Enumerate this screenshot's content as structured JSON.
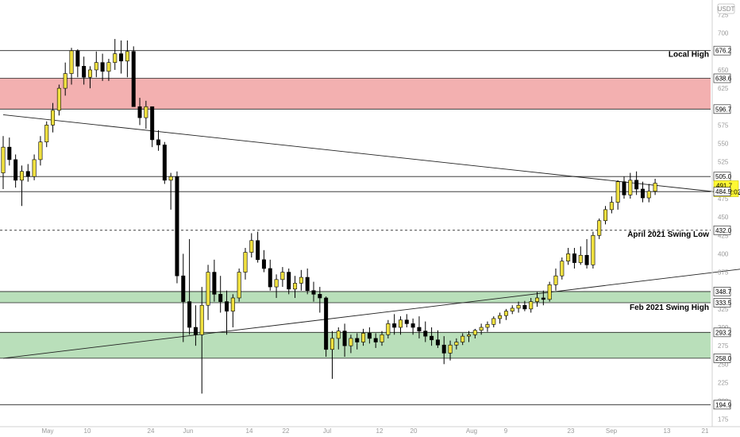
{
  "chart_data": {
    "type": "candlestick",
    "currency": "USDT",
    "x_axis_labels": [
      "May",
      "10",
      "24",
      "Jun",
      "14",
      "22",
      "Jul",
      "12",
      "20",
      "Aug",
      "9",
      "23",
      "Sep",
      "13",
      "21"
    ],
    "y_axis_ticks": [
      175,
      200,
      225,
      250,
      275,
      300,
      325,
      350,
      375,
      400,
      425,
      450,
      475,
      500,
      525,
      550,
      575,
      600,
      625,
      650,
      675,
      700,
      725
    ],
    "ylim": [
      165,
      745
    ],
    "price_labels": [
      {
        "text": "676.2",
        "value": 676.2,
        "style": "plain"
      },
      {
        "text": "638.6",
        "value": 638.6,
        "style": "plain"
      },
      {
        "text": "596.7",
        "value": 596.7,
        "style": "plain"
      },
      {
        "text": "505.0",
        "value": 505.0,
        "style": "plain"
      },
      {
        "text": "491.7",
        "value": 491.7,
        "style": "current",
        "countdown": "09:02:02"
      },
      {
        "text": "484.5",
        "value": 484.5,
        "style": "plain"
      },
      {
        "text": "432.0",
        "value": 432.0,
        "style": "plain"
      },
      {
        "text": "348.7",
        "value": 348.7,
        "style": "plain"
      },
      {
        "text": "333.5",
        "value": 333.5,
        "style": "plain"
      },
      {
        "text": "293.2",
        "value": 293.2,
        "style": "plain"
      },
      {
        "text": "258.0",
        "value": 258.0,
        "style": "plain"
      },
      {
        "text": "194.9",
        "value": 194.9,
        "style": "plain"
      }
    ],
    "horizontal_lines": [
      {
        "value": 676.2,
        "style": "solid"
      },
      {
        "value": 505.0,
        "style": "solid"
      },
      {
        "value": 484.5,
        "style": "solid"
      },
      {
        "value": 432.0,
        "style": "dashed"
      },
      {
        "value": 194.9,
        "style": "solid"
      }
    ],
    "zones": [
      {
        "from": 596.7,
        "to": 638.6,
        "type": "resistance",
        "color": "#ef9a9a"
      },
      {
        "from": 333.5,
        "to": 348.7,
        "type": "support",
        "color": "#a5d6a7"
      },
      {
        "from": 258.0,
        "to": 293.2,
        "type": "support",
        "color": "#a5d6a7"
      }
    ],
    "trendlines": [
      {
        "from": {
          "candle": 0,
          "value": 589
        },
        "to": {
          "candle": 150,
          "value": 452
        }
      },
      {
        "from": {
          "candle": 0,
          "value": 258
        },
        "to": {
          "candle": 150,
          "value": 411
        }
      }
    ],
    "annotations": [
      {
        "text": "Local High",
        "value": 668
      },
      {
        "text": "April 2021 Swing Low",
        "value": 423
      },
      {
        "text": "Feb 2021 Swing High",
        "value": 324
      }
    ],
    "colors": {
      "up": "#f0e040",
      "down": "#000000",
      "resistance": "#ef9a9a",
      "support": "#a5d6a7",
      "current_badge": "#fff833"
    },
    "candles": [
      [
        510,
        560,
        488,
        545
      ],
      [
        545,
        558,
        520,
        528
      ],
      [
        528,
        535,
        490,
        500
      ],
      [
        500,
        520,
        465,
        512
      ],
      [
        512,
        522,
        498,
        505
      ],
      [
        505,
        535,
        500,
        528
      ],
      [
        528,
        560,
        520,
        552
      ],
      [
        552,
        580,
        545,
        575
      ],
      [
        575,
        605,
        565,
        595
      ],
      [
        595,
        630,
        588,
        625
      ],
      [
        625,
        660,
        615,
        645
      ],
      [
        645,
        680,
        630,
        676
      ],
      [
        676,
        678,
        640,
        655
      ],
      [
        655,
        668,
        630,
        640
      ],
      [
        640,
        655,
        625,
        650
      ],
      [
        650,
        675,
        640,
        660
      ],
      [
        660,
        672,
        635,
        648
      ],
      [
        648,
        665,
        635,
        660
      ],
      [
        660,
        692,
        650,
        672
      ],
      [
        672,
        690,
        645,
        662
      ],
      [
        662,
        690,
        640,
        675
      ],
      [
        675,
        682,
        600,
        600
      ],
      [
        600,
        612,
        575,
        585
      ],
      [
        585,
        608,
        570,
        600
      ],
      [
        600,
        600,
        545,
        555
      ],
      [
        555,
        568,
        540,
        548
      ],
      [
        548,
        552,
        495,
        500
      ],
      [
        500,
        510,
        460,
        505
      ],
      [
        505,
        512,
        360,
        370
      ],
      [
        370,
        400,
        280,
        335
      ],
      [
        335,
        420,
        290,
        300
      ],
      [
        300,
        330,
        275,
        290
      ],
      [
        290,
        355,
        210,
        330
      ],
      [
        330,
        385,
        310,
        375
      ],
      [
        375,
        392,
        335,
        345
      ],
      [
        345,
        370,
        320,
        335
      ],
      [
        335,
        350,
        290,
        322
      ],
      [
        322,
        345,
        300,
        340
      ],
      [
        340,
        380,
        335,
        375
      ],
      [
        375,
        408,
        365,
        402
      ],
      [
        402,
        428,
        395,
        418
      ],
      [
        418,
        430,
        388,
        392
      ],
      [
        392,
        405,
        375,
        380
      ],
      [
        380,
        392,
        350,
        355
      ],
      [
        355,
        372,
        340,
        365
      ],
      [
        365,
        382,
        355,
        375
      ],
      [
        375,
        380,
        345,
        352
      ],
      [
        352,
        370,
        340,
        360
      ],
      [
        360,
        378,
        350,
        368
      ],
      [
        368,
        380,
        345,
        350
      ],
      [
        350,
        362,
        335,
        345
      ],
      [
        345,
        355,
        320,
        340
      ],
      [
        340,
        342,
        260,
        270
      ],
      [
        270,
        295,
        230,
        285
      ],
      [
        285,
        300,
        270,
        295
      ],
      [
        295,
        305,
        260,
        275
      ],
      [
        275,
        290,
        265,
        285
      ],
      [
        285,
        292,
        270,
        280
      ],
      [
        280,
        298,
        275,
        292
      ],
      [
        292,
        300,
        278,
        285
      ],
      [
        285,
        292,
        272,
        280
      ],
      [
        280,
        295,
        275,
        290
      ],
      [
        290,
        310,
        285,
        305
      ],
      [
        305,
        318,
        290,
        300
      ],
      [
        300,
        315,
        290,
        310
      ],
      [
        310,
        318,
        300,
        305
      ],
      [
        305,
        312,
        290,
        300
      ],
      [
        300,
        315,
        285,
        295
      ],
      [
        295,
        308,
        280,
        288
      ],
      [
        288,
        300,
        275,
        283
      ],
      [
        283,
        296,
        272,
        276
      ],
      [
        276,
        288,
        250,
        265
      ],
      [
        265,
        282,
        255,
        276
      ],
      [
        276,
        285,
        270,
        280
      ],
      [
        280,
        292,
        276,
        288
      ],
      [
        288,
        295,
        280,
        290
      ],
      [
        290,
        298,
        285,
        296
      ],
      [
        296,
        305,
        290,
        300
      ],
      [
        300,
        308,
        294,
        304
      ],
      [
        304,
        315,
        300,
        312
      ],
      [
        312,
        320,
        305,
        316
      ],
      [
        316,
        325,
        310,
        322
      ],
      [
        322,
        330,
        318,
        326
      ],
      [
        326,
        335,
        320,
        330
      ],
      [
        330,
        336,
        322,
        325
      ],
      [
        325,
        340,
        320,
        335
      ],
      [
        335,
        348,
        328,
        340
      ],
      [
        340,
        350,
        330,
        338
      ],
      [
        338,
        362,
        335,
        358
      ],
      [
        358,
        380,
        350,
        370
      ],
      [
        370,
        395,
        365,
        390
      ],
      [
        390,
        408,
        385,
        400
      ],
      [
        400,
        408,
        380,
        388
      ],
      [
        388,
        410,
        385,
        398
      ],
      [
        398,
        420,
        380,
        385
      ],
      [
        385,
        430,
        380,
        425
      ],
      [
        425,
        448,
        420,
        445
      ],
      [
        445,
        465,
        440,
        460
      ],
      [
        460,
        478,
        455,
        470
      ],
      [
        470,
        500,
        460,
        498
      ],
      [
        498,
        505,
        475,
        480
      ],
      [
        480,
        510,
        475,
        500
      ],
      [
        500,
        512,
        480,
        488
      ],
      [
        488,
        498,
        470,
        476
      ],
      [
        476,
        495,
        470,
        485
      ],
      [
        485,
        502,
        480,
        496
      ]
    ]
  }
}
